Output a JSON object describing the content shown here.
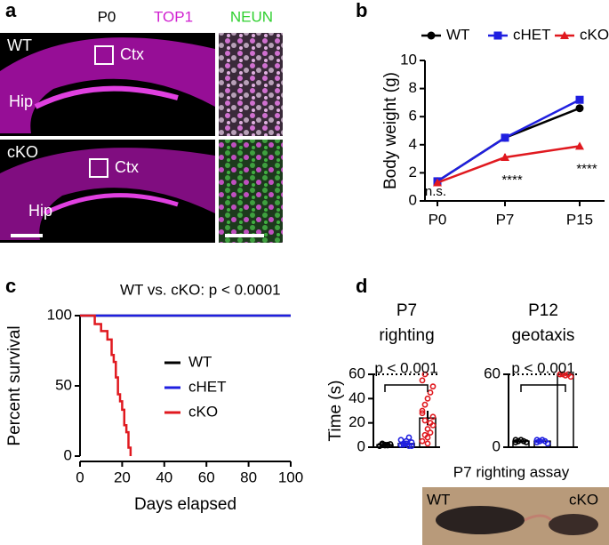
{
  "panel_labels": [
    "a",
    "b",
    "c",
    "d"
  ],
  "images": {
    "header": [
      "P0",
      "TOP1",
      "NEUN"
    ],
    "rows": [
      {
        "label": "WT",
        "regions": [
          "Ctx",
          "Hip"
        ]
      },
      {
        "label": "cKO",
        "regions": [
          "Ctx",
          "Hip"
        ]
      }
    ]
  },
  "photo": {
    "title": "P7 righting assay",
    "labels": [
      "WT",
      "cKO"
    ]
  },
  "chart_data": [
    {
      "type": "line",
      "ylabel": "Body weight (g)",
      "categories": [
        "P0",
        "P7",
        "P15"
      ],
      "series": [
        {
          "name": "WT",
          "color": "#000000",
          "marker": "circle",
          "values": [
            1.4,
            4.5,
            6.6
          ],
          "errors": [
            0.1,
            0.15,
            0.2
          ]
        },
        {
          "name": "cHET",
          "color": "#1f1fe0",
          "marker": "square",
          "values": [
            1.4,
            4.5,
            7.2
          ],
          "errors": [
            0.1,
            0.15,
            0.2
          ]
        },
        {
          "name": "cKO",
          "color": "#e0191f",
          "marker": "triangle",
          "values": [
            1.3,
            3.1,
            3.9
          ],
          "errors": [
            0.1,
            0.25,
            0.2
          ]
        }
      ],
      "annotations": [
        "n.s.",
        "****",
        "****"
      ],
      "ylim": [
        0,
        10
      ],
      "yticks": [
        0,
        2,
        4,
        6,
        8,
        10
      ],
      "legend": "top"
    },
    {
      "type": "line",
      "title": "WT vs. cKO: p < 0.0001",
      "xlabel": "Days elapsed",
      "ylabel": "Percent survival",
      "series": [
        {
          "name": "WT",
          "color": "#000000",
          "x": [
            0,
            100
          ],
          "values": [
            100,
            100
          ]
        },
        {
          "name": "cHET",
          "color": "#1f1fe0",
          "x": [
            0,
            100
          ],
          "values": [
            100,
            100
          ]
        },
        {
          "name": "cKO",
          "color": "#e0191f",
          "x": [
            0,
            7,
            7,
            10,
            10,
            13,
            13,
            15,
            15,
            16,
            16,
            17,
            17,
            18,
            18,
            19,
            19,
            20,
            20,
            21,
            21,
            22,
            22,
            23,
            23,
            24,
            24
          ],
          "values": [
            100,
            100,
            94,
            94,
            89,
            89,
            83,
            83,
            72,
            72,
            67,
            67,
            56,
            56,
            44,
            44,
            39,
            39,
            33,
            33,
            22,
            22,
            17,
            17,
            6,
            6,
            0
          ]
        }
      ],
      "xlim": [
        0,
        100
      ],
      "xticks": [
        0,
        20,
        40,
        60,
        80,
        100
      ],
      "ylim": [
        0,
        100
      ],
      "yticks": [
        0,
        50,
        100
      ],
      "legend": "right"
    },
    {
      "type": "bar",
      "title": [
        "P7",
        "righting"
      ],
      "annotation": "p < 0.001",
      "ylabel": "Time (s)",
      "categories": [
        null,
        null,
        null
      ],
      "colors": [
        "#000000",
        "#1f1fe0",
        "#e0191f"
      ],
      "values": [
        2,
        3,
        24
      ],
      "errors": [
        0.5,
        1,
        6
      ],
      "points": [
        [
          1,
          2,
          1.5,
          2,
          2.5,
          1,
          3,
          2,
          1.5
        ],
        [
          2,
          3,
          5,
          1,
          4,
          6,
          2,
          3,
          8,
          1
        ],
        [
          5,
          10,
          15,
          20,
          25,
          30,
          35,
          40,
          45,
          50,
          55,
          60,
          8,
          12,
          18,
          28,
          22,
          3
        ]
      ],
      "ref_line": 60,
      "ylim": [
        0,
        60
      ],
      "yticks": [
        0,
        20,
        40,
        60
      ]
    },
    {
      "type": "bar",
      "title": [
        "P12",
        "geotaxis"
      ],
      "annotation": "p < 0.001",
      "categories": [
        null,
        null,
        null
      ],
      "colors": [
        "#000000",
        "#1f1fe0",
        "#e0191f"
      ],
      "values": [
        5,
        5,
        60
      ],
      "errors": [
        0.5,
        0.5,
        0.5
      ],
      "points": [
        [
          4,
          5,
          6,
          5,
          4,
          6
        ],
        [
          4,
          5,
          6,
          5,
          3,
          6,
          5
        ],
        [
          60,
          60,
          59,
          60,
          58,
          60
        ]
      ],
      "ref_line": 60,
      "ylim": [
        0,
        60
      ],
      "yticks": [
        0,
        60
      ]
    }
  ]
}
